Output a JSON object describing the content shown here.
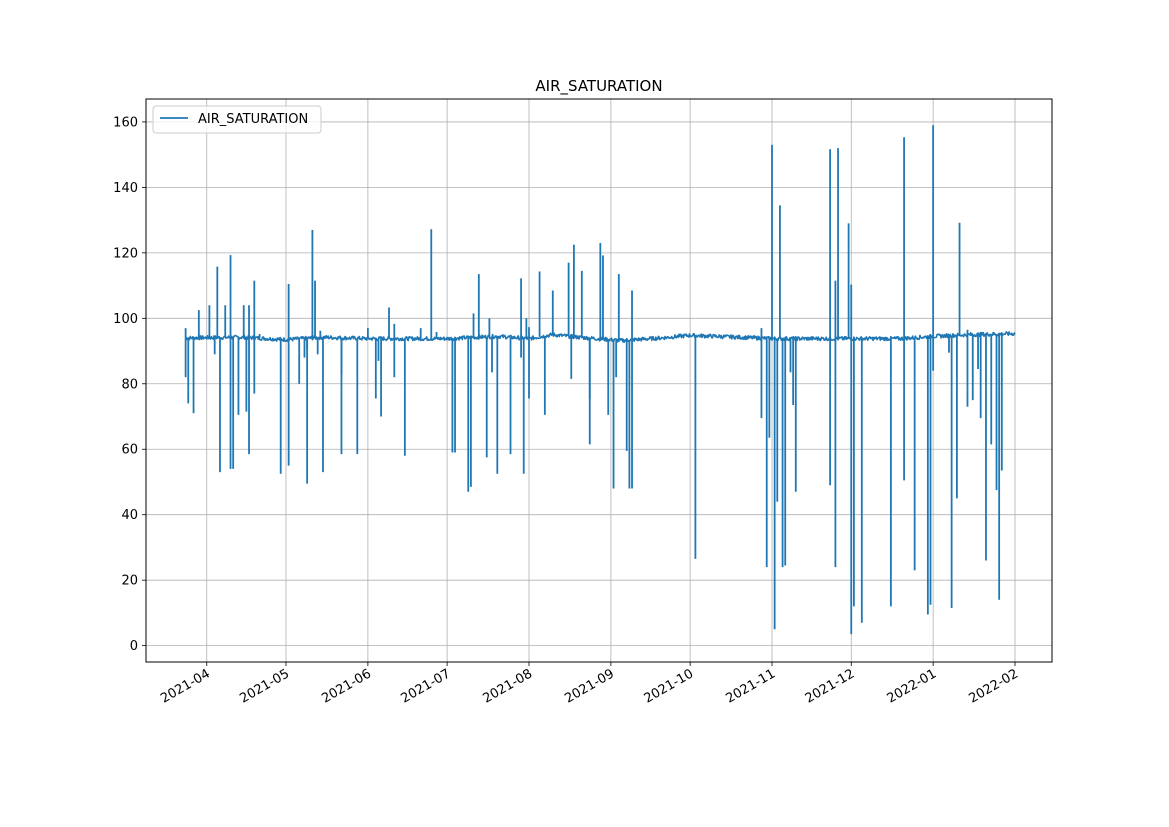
{
  "chart_data": {
    "type": "line",
    "title": "AIR_SATURATION",
    "xlabel": "",
    "ylabel": "",
    "x_axis_type": "date",
    "xlim": [
      "2021-03-09",
      "2022-02-15"
    ],
    "ylim": [
      -5,
      167
    ],
    "x_ticks": [
      "2021-04",
      "2021-05",
      "2021-06",
      "2021-07",
      "2021-08",
      "2021-09",
      "2021-10",
      "2021-11",
      "2021-12",
      "2022-01",
      "2022-02"
    ],
    "y_ticks": [
      0,
      20,
      40,
      60,
      80,
      100,
      120,
      140,
      160
    ],
    "grid": true,
    "legend": {
      "position": "top-left",
      "entries": [
        "AIR_SATURATION"
      ]
    },
    "series": [
      {
        "name": "AIR_SATURATION",
        "color": "#1f77b4",
        "baseline": [
          [
            "2021-03-24",
            94
          ],
          [
            "2021-04-15",
            94.2
          ],
          [
            "2021-05-01",
            93.5
          ],
          [
            "2021-05-15",
            94.2
          ],
          [
            "2021-06-01",
            93.8
          ],
          [
            "2021-07-01",
            93.8
          ],
          [
            "2021-07-20",
            94.5
          ],
          [
            "2021-08-01",
            93.8
          ],
          [
            "2021-08-10",
            95
          ],
          [
            "2021-08-20",
            94.2
          ],
          [
            "2021-09-05",
            93.2
          ],
          [
            "2021-09-20",
            94
          ],
          [
            "2021-10-01",
            94.8
          ],
          [
            "2021-10-20",
            94.2
          ],
          [
            "2021-11-01",
            93.8
          ],
          [
            "2021-12-01",
            93.8
          ],
          [
            "2021-12-20",
            93.8
          ],
          [
            "2022-01-01",
            94.5
          ],
          [
            "2022-01-15",
            95
          ],
          [
            "2022-02-01",
            95.3
          ]
        ],
        "spikes": [
          [
            "2021-03-24",
            97
          ],
          [
            "2021-03-24",
            82
          ],
          [
            "2021-03-25",
            74
          ],
          [
            "2021-03-27",
            71
          ],
          [
            "2021-03-29",
            102.5
          ],
          [
            "2021-04-02",
            104
          ],
          [
            "2021-04-04",
            89
          ],
          [
            "2021-04-05",
            115.8
          ],
          [
            "2021-04-06",
            53
          ],
          [
            "2021-04-08",
            104
          ],
          [
            "2021-04-10",
            119.3
          ],
          [
            "2021-04-10",
            54
          ],
          [
            "2021-04-11",
            54
          ],
          [
            "2021-04-13",
            70.5
          ],
          [
            "2021-04-15",
            104
          ],
          [
            "2021-04-16",
            71.5
          ],
          [
            "2021-04-17",
            104
          ],
          [
            "2021-04-17",
            58.5
          ],
          [
            "2021-04-19",
            111.5
          ],
          [
            "2021-04-19",
            77
          ],
          [
            "2021-04-21",
            95.2
          ],
          [
            "2021-04-29",
            52.5
          ],
          [
            "2021-05-02",
            110.5
          ],
          [
            "2021-05-02",
            55
          ],
          [
            "2021-05-06",
            80
          ],
          [
            "2021-05-08",
            88
          ],
          [
            "2021-05-09",
            49.5
          ],
          [
            "2021-05-09",
            90.5
          ],
          [
            "2021-05-11",
            127
          ],
          [
            "2021-05-12",
            111.5
          ],
          [
            "2021-05-13",
            89
          ],
          [
            "2021-05-14",
            96.2
          ],
          [
            "2021-05-15",
            53
          ],
          [
            "2021-05-22",
            83
          ],
          [
            "2021-05-22",
            58.5
          ],
          [
            "2021-05-28",
            58.5
          ],
          [
            "2021-06-01",
            97
          ],
          [
            "2021-06-04",
            75.5
          ],
          [
            "2021-06-05",
            87
          ],
          [
            "2021-06-06",
            70
          ],
          [
            "2021-06-09",
            103.3
          ],
          [
            "2021-06-11",
            98.3
          ],
          [
            "2021-06-11",
            82
          ],
          [
            "2021-06-15",
            58
          ],
          [
            "2021-06-21",
            97
          ],
          [
            "2021-06-25",
            127.2
          ],
          [
            "2021-06-27",
            95.8
          ],
          [
            "2021-07-03",
            59
          ],
          [
            "2021-07-04",
            59
          ],
          [
            "2021-07-09",
            47
          ],
          [
            "2021-07-10",
            48.5
          ],
          [
            "2021-07-11",
            101.5
          ],
          [
            "2021-07-13",
            113.5
          ],
          [
            "2021-07-16",
            57.5
          ],
          [
            "2021-07-17",
            100
          ],
          [
            "2021-07-18",
            83.5
          ],
          [
            "2021-07-20",
            52.5
          ],
          [
            "2021-07-25",
            58.5
          ],
          [
            "2021-07-29",
            112.2
          ],
          [
            "2021-07-29",
            88
          ],
          [
            "2021-07-30",
            52.5
          ],
          [
            "2021-07-31",
            100
          ],
          [
            "2021-08-01",
            75.5
          ],
          [
            "2021-08-01",
            97.3
          ],
          [
            "2021-08-05",
            114.3
          ],
          [
            "2021-08-07",
            70.5
          ],
          [
            "2021-08-10",
            108.5
          ],
          [
            "2021-08-16",
            117
          ],
          [
            "2021-08-17",
            81.5
          ],
          [
            "2021-08-18",
            122.5
          ],
          [
            "2021-08-21",
            114.5
          ],
          [
            "2021-08-24",
            61.5
          ],
          [
            "2021-08-24",
            75.5
          ],
          [
            "2021-08-28",
            123
          ],
          [
            "2021-08-29",
            119.2
          ],
          [
            "2021-08-31",
            70.5
          ],
          [
            "2021-09-02",
            48
          ],
          [
            "2021-09-03",
            82
          ],
          [
            "2021-09-04",
            113.5
          ],
          [
            "2021-09-07",
            59.5
          ],
          [
            "2021-09-08",
            48
          ],
          [
            "2021-09-09",
            108.5
          ],
          [
            "2021-09-09",
            48
          ],
          [
            "2021-10-03",
            26.5
          ],
          [
            "2021-10-28",
            97
          ],
          [
            "2021-10-28",
            69.5
          ],
          [
            "2021-10-30",
            24
          ],
          [
            "2021-10-31",
            63.5
          ],
          [
            "2021-11-01",
            153
          ],
          [
            "2021-11-02",
            5
          ],
          [
            "2021-11-03",
            44
          ],
          [
            "2021-11-04",
            134.5
          ],
          [
            "2021-11-05",
            24
          ],
          [
            "2021-11-06",
            24.5
          ],
          [
            "2021-11-08",
            83.5
          ],
          [
            "2021-11-09",
            73.5
          ],
          [
            "2021-11-10",
            47
          ],
          [
            "2021-11-23",
            151.7
          ],
          [
            "2021-11-23",
            49
          ],
          [
            "2021-11-25",
            24
          ],
          [
            "2021-11-25",
            111.5
          ],
          [
            "2021-11-26",
            152
          ],
          [
            "2021-11-30",
            129
          ],
          [
            "2021-12-01",
            110.3
          ],
          [
            "2021-12-01",
            3.5
          ],
          [
            "2021-12-02",
            12
          ],
          [
            "2021-12-05",
            7
          ],
          [
            "2021-12-16",
            12
          ],
          [
            "2021-12-21",
            155.3
          ],
          [
            "2021-12-21",
            50.5
          ],
          [
            "2021-12-25",
            23
          ],
          [
            "2021-12-30",
            9.5
          ],
          [
            "2021-12-31",
            12.5
          ],
          [
            "2022-01-01",
            84
          ],
          [
            "2022-01-01",
            159
          ],
          [
            "2022-01-07",
            89.5
          ],
          [
            "2022-01-08",
            11.5
          ],
          [
            "2022-01-10",
            45
          ],
          [
            "2022-01-11",
            129.2
          ],
          [
            "2022-01-14",
            96.5
          ],
          [
            "2022-01-14",
            73
          ],
          [
            "2022-01-16",
            75
          ],
          [
            "2022-01-18",
            84.5
          ],
          [
            "2022-01-19",
            69.5
          ],
          [
            "2022-01-21",
            26
          ],
          [
            "2022-01-22",
            94.5
          ],
          [
            "2022-01-23",
            61.5
          ],
          [
            "2022-01-25",
            47.5
          ],
          [
            "2022-01-26",
            14
          ],
          [
            "2022-01-27",
            53.5
          ]
        ]
      }
    ]
  }
}
